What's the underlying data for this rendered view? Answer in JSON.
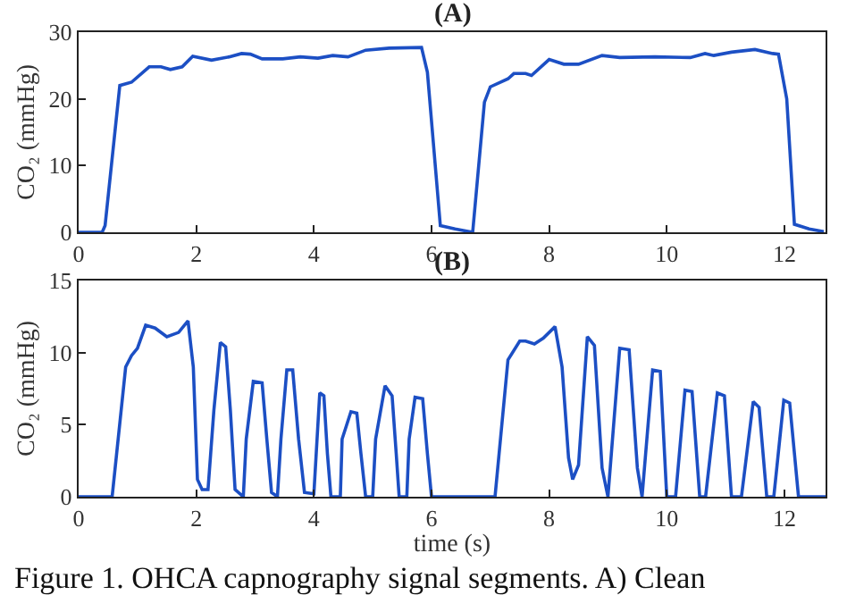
{
  "chart_data": [
    {
      "type": "line",
      "title": "(A)",
      "ylabel": "CO₂ (mmHg)",
      "xlim": [
        0,
        12.7
      ],
      "xticks": [
        0,
        2,
        4,
        6,
        8,
        10,
        12
      ],
      "ylim": [
        0,
        30
      ],
      "yticks": [
        0,
        10,
        20,
        30
      ],
      "marker": "none",
      "line_style": "solid",
      "x": [
        0,
        0.4,
        0.45,
        0.7,
        0.9,
        1.2,
        1.4,
        1.56,
        1.76,
        1.94,
        2.26,
        2.56,
        2.77,
        2.92,
        3.12,
        3.47,
        3.77,
        4.07,
        4.32,
        4.58,
        4.88,
        5.28,
        5.83,
        5.93,
        6.15,
        6.4,
        6.7,
        6.9,
        7.0,
        7.3,
        7.4,
        7.6,
        7.7,
        8.0,
        8.25,
        8.5,
        8.9,
        9.2,
        9.8,
        10.4,
        10.65,
        10.8,
        11.1,
        11.5,
        11.8,
        11.9,
        12.04,
        12.17,
        12.42,
        12.67
      ],
      "series": [
        {
          "color": "#1c4fc4",
          "values": [
            0,
            0,
            1,
            22,
            22.5,
            24.8,
            24.8,
            24.4,
            24.8,
            26.4,
            25.8,
            26.3,
            26.8,
            26.7,
            26,
            26,
            26.3,
            26.1,
            26.5,
            26.3,
            27.3,
            27.6,
            27.7,
            24,
            1,
            0.5,
            0,
            19.5,
            21.8,
            23,
            23.8,
            23.8,
            23.5,
            25.9,
            25.2,
            25.2,
            26.5,
            26.2,
            26.3,
            26.2,
            26.8,
            26.5,
            27,
            27.4,
            26.8,
            26.7,
            20,
            1.2,
            0.5,
            0.1
          ]
        }
      ]
    },
    {
      "type": "line",
      "title": "(B)",
      "xlabel": "time (s)",
      "ylabel": "CO₂ (mmHg)",
      "xlim": [
        0,
        12.7
      ],
      "xticks": [
        0,
        2,
        4,
        6,
        8,
        10,
        12
      ],
      "ylim": [
        0,
        15
      ],
      "yticks": [
        0,
        5,
        10,
        15
      ],
      "marker": "none",
      "line_style": "solid",
      "x": [
        0,
        0.57,
        0.8,
        0.9,
        1.0,
        1.14,
        1.3,
        1.5,
        1.7,
        1.86,
        1.95,
        2.02,
        2.1,
        2.2,
        2.3,
        2.41,
        2.5,
        2.58,
        2.66,
        2.8,
        2.85,
        2.97,
        3.12,
        3.2,
        3.28,
        3.38,
        3.44,
        3.54,
        3.64,
        3.74,
        3.84,
        4.0,
        4.1,
        4.17,
        4.23,
        4.29,
        4.45,
        4.48,
        4.63,
        4.73,
        4.8,
        4.88,
        5.0,
        5.05,
        5.21,
        5.33,
        5.4,
        5.45,
        5.58,
        5.62,
        5.72,
        5.85,
        5.93,
        6.0,
        7.0,
        7.08,
        7.3,
        7.5,
        7.6,
        7.75,
        7.9,
        8.1,
        8.22,
        8.33,
        8.4,
        8.5,
        8.65,
        8.77,
        8.9,
        9.0,
        9.2,
        9.36,
        9.5,
        9.58,
        9.76,
        9.89,
        10.0,
        10.15,
        10.31,
        10.43,
        10.56,
        10.66,
        10.86,
        10.98,
        11.1,
        11.27,
        11.47,
        11.57,
        11.7,
        11.82,
        11.99,
        12.09,
        12.24,
        12.7
      ],
      "series": [
        {
          "color": "#1c4fc4",
          "values": [
            0,
            0,
            9,
            9.8,
            10.3,
            11.9,
            11.7,
            11.1,
            11.4,
            12.2,
            9,
            1.2,
            0.5,
            0.5,
            6,
            10.7,
            10.4,
            6,
            0.5,
            0,
            4,
            8,
            7.9,
            4,
            0.3,
            0,
            4,
            8.8,
            8.8,
            4,
            0.3,
            0.2,
            7.2,
            7,
            3,
            0,
            0,
            4,
            5.9,
            5.8,
            3,
            0,
            0,
            4,
            7.7,
            7,
            3,
            0,
            0,
            4,
            6.9,
            6.8,
            3,
            0,
            0,
            0,
            9.5,
            10.8,
            10.8,
            10.6,
            11,
            11.8,
            9,
            2.7,
            1.2,
            2.2,
            11.1,
            10.5,
            2,
            0,
            10.3,
            10.2,
            2,
            0,
            8.8,
            8.7,
            0,
            0,
            7.4,
            7.3,
            0,
            0,
            7.2,
            7,
            0,
            0,
            6.6,
            6.2,
            0,
            0,
            6.7,
            6.5,
            0,
            0
          ]
        }
      ],
      "annotations": [
        "Figure 1. OHCA capnography signal segments. A) Clean"
      ]
    }
  ]
}
